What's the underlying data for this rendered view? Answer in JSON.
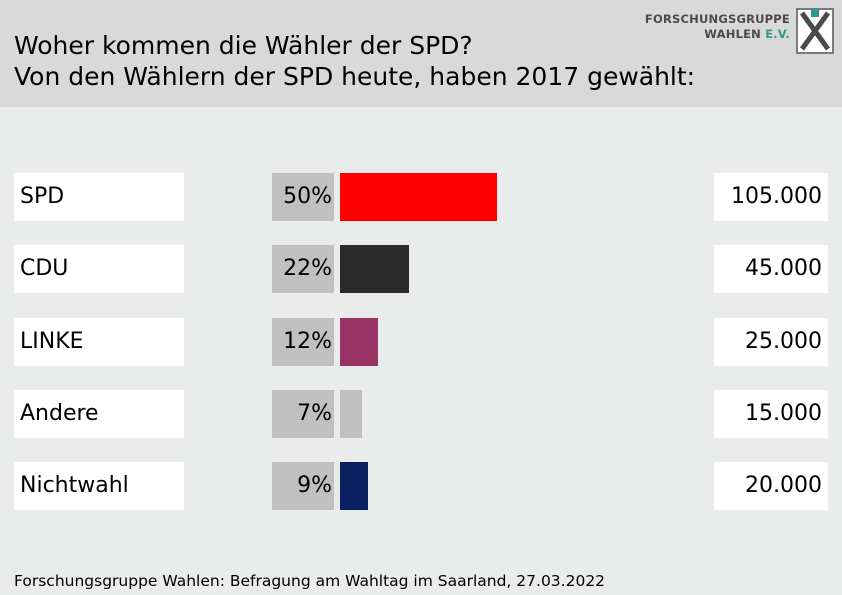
{
  "header": {
    "title_line1": "Woher kommen die Wähler der SPD?",
    "title_line2": "Von den Wählern der SPD heute, haben 2017 gewählt:",
    "logo_line1": "FORSCHUNGSGRUPPE",
    "logo_line2_a": "WAHLEN ",
    "logo_line2_b": "E.V."
  },
  "chart_data": {
    "type": "bar",
    "orientation": "horizontal",
    "title": "Woher kommen die Wähler der SPD?",
    "subtitle": "Von den Wählern der SPD heute, haben 2017 gewählt:",
    "categories": [
      "SPD",
      "CDU",
      "LINKE",
      "Andere",
      "Nichtwahl"
    ],
    "values": [
      50,
      22,
      12,
      7,
      9
    ],
    "value_labels": [
      "50%",
      "22%",
      "12%",
      "7%",
      "9%"
    ],
    "counts": [
      "105.000",
      "45.000",
      "25.000",
      "15.000",
      "20.000"
    ],
    "colors": [
      "#ff0000",
      "#2a2a2a",
      "#993366",
      "#c0c0c0",
      "#0b2060"
    ],
    "unit": "%"
  },
  "footer": {
    "source": "Forschungsgruppe Wahlen: Befragung am Wahltag im Saarland, 27.03.2022"
  }
}
